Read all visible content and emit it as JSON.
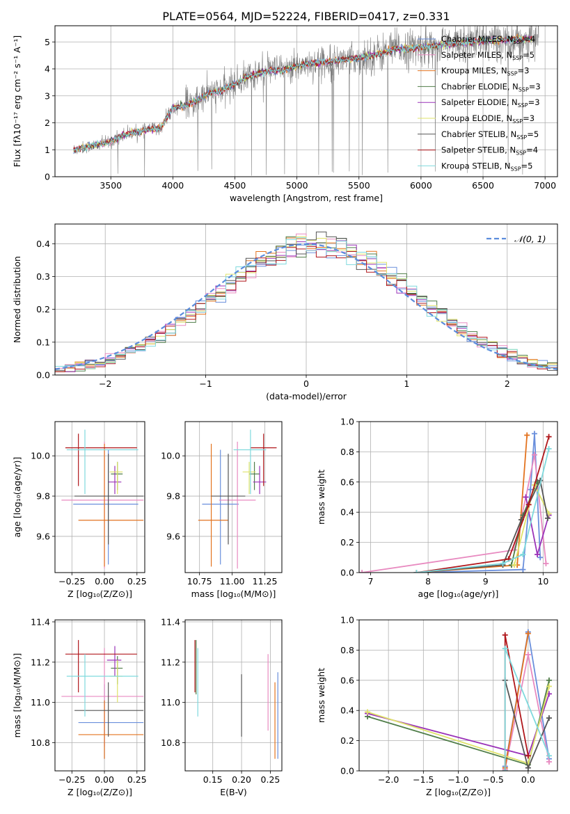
{
  "figure_title": "PLATE=0564, MJD=52224, FIBERID=0417, z=0.331",
  "colors": {
    "chabrier_miles": "#6a8fdc",
    "salpeter_miles": "#e88ac0",
    "kroupa_miles": "#e3731f",
    "chabrier_elodie": "#4f7d48",
    "salpeter_elodie": "#9a32b8",
    "kroupa_elodie": "#dfe36a",
    "chabrier_stelib": "#555555",
    "salpeter_stelib": "#b0171b",
    "kroupa_stelib": "#7fd9dd",
    "gaussian": "#5b8cdc",
    "data_spectrum": "#808080"
  },
  "legend_models": [
    {
      "label": "Chabrier MILES, N",
      "sub": "SSP",
      "suffix": "=4",
      "color": "#6a8fdc"
    },
    {
      "label": "Salpeter MILES, N",
      "sub": "SSP",
      "suffix": "=5",
      "color": "#e88ac0"
    },
    {
      "label": "Kroupa MILES, N",
      "sub": "SSP",
      "suffix": "=3",
      "color": "#e3731f"
    },
    {
      "label": "Chabrier ELODIE, N",
      "sub": "SSP",
      "suffix": "=3",
      "color": "#4f7d48"
    },
    {
      "label": "Salpeter ELODIE, N",
      "sub": "SSP",
      "suffix": "=3",
      "color": "#9a32b8"
    },
    {
      "label": "Kroupa ELODIE, N",
      "sub": "SSP",
      "suffix": "=3",
      "color": "#dfe36a"
    },
    {
      "label": "Chabrier STELIB, N",
      "sub": "SSP",
      "suffix": "=5",
      "color": "#555555"
    },
    {
      "label": "Salpeter STELIB, N",
      "sub": "SSP",
      "suffix": "=4",
      "color": "#b0171b"
    },
    {
      "label": "Kroupa STELIB, N",
      "sub": "SSP",
      "suffix": "=5",
      "color": "#7fd9dd"
    }
  ],
  "chart_data": [
    {
      "id": "spectrum",
      "type": "line",
      "xlabel": "wavelength [Angstrom, rest frame]",
      "ylabel": "Flux [fλ10⁻¹⁷ erg cm⁻² s⁻¹ A⁻¹]",
      "xlim": [
        3050,
        7100
      ],
      "ylim": [
        0,
        5.6
      ],
      "xticks": [
        3500,
        4000,
        4500,
        5000,
        5500,
        6000,
        6500,
        7000
      ],
      "yticks": [
        0,
        1,
        2,
        3,
        4,
        5
      ],
      "model_continuum": {
        "x": [
          3200,
          3300,
          3400,
          3500,
          3600,
          3700,
          3800,
          3900,
          4000,
          4100,
          4200,
          4300,
          4400,
          4500,
          4600,
          4700,
          4800,
          4900,
          5000,
          5100,
          5200,
          5300,
          5400,
          5500,
          5600,
          5700,
          5800,
          5900,
          6000,
          6100,
          6200,
          6300,
          6400,
          6500,
          6600,
          6700,
          6800,
          6900
        ],
        "y": [
          1.0,
          1.1,
          1.2,
          1.3,
          1.55,
          1.65,
          1.75,
          1.8,
          2.55,
          2.65,
          2.85,
          3.1,
          3.2,
          3.45,
          3.7,
          3.85,
          3.95,
          3.95,
          4.1,
          4.2,
          4.25,
          4.3,
          4.35,
          4.4,
          4.5,
          4.6,
          4.75,
          4.75,
          4.8,
          4.85,
          4.9,
          4.95,
          5.0,
          5.05,
          5.05,
          5.1,
          5.1,
          5.1
        ]
      },
      "legend_position": "upper right"
    },
    {
      "id": "residuals",
      "type": "step-histogram",
      "xlabel": "(data-model)/error",
      "ylabel": "Normed distribution",
      "xlim": [
        -2.5,
        2.5
      ],
      "ylim": [
        0,
        0.46
      ],
      "xticks": [
        -2,
        -1,
        0,
        1,
        2
      ],
      "yticks": [
        0.0,
        0.1,
        0.2,
        0.3,
        0.4
      ],
      "bin_width": 0.1,
      "reference_curve": "Gaussian mean 0, sigma 1",
      "legend": [
        {
          "label": "𝒩(0, 1)",
          "style": "dashed",
          "color": "#5b8cdc"
        }
      ],
      "legend_position": "upper right"
    },
    {
      "id": "age_vs_Z",
      "type": "errorbar",
      "xlabel": "Z [log₁₀(Z/Z⊙)]",
      "ylabel": "age  [log₁₀(age/yr)]",
      "xlim": [
        -0.38,
        0.31
      ],
      "ylim": [
        9.42,
        10.17
      ],
      "xticks": [
        -0.25,
        0.0,
        0.25
      ],
      "yticks": [
        9.6,
        9.8,
        10.0
      ],
      "points": [
        {
          "model": "Chabrier MILES",
          "x": 0.03,
          "xerr": [
            0.27,
            0.23
          ],
          "y": 9.76,
          "yerr": [
            0.3,
            0.27
          ],
          "color": "#6a8fdc"
        },
        {
          "model": "Salpeter MILES",
          "x": 0.0,
          "xerr": [
            0.33,
            0.3
          ],
          "y": 9.78,
          "yerr": [
            0.34,
            0.29
          ],
          "color": "#e88ac0"
        },
        {
          "model": "Kroupa MILES",
          "x": 0.0,
          "xerr": [
            0.2,
            0.3
          ],
          "y": 9.68,
          "yerr": [
            0.23,
            0.38
          ],
          "color": "#e3731f"
        },
        {
          "model": "Chabrier ELODIE",
          "x": 0.1,
          "xerr": [
            0.05,
            0.04
          ],
          "y": 9.91,
          "yerr": [
            0.08,
            0.06
          ],
          "color": "#4f7d48"
        },
        {
          "model": "Salpeter ELODIE",
          "x": 0.08,
          "xerr": [
            0.05,
            0.05
          ],
          "y": 9.87,
          "yerr": [
            0.06,
            0.08
          ],
          "color": "#9a32b8"
        },
        {
          "model": "Kroupa ELODIE",
          "x": 0.1,
          "xerr": [
            0.06,
            0.04
          ],
          "y": 9.92,
          "yerr": [
            0.11,
            0.05
          ],
          "color": "#dfe36a"
        },
        {
          "model": "Chabrier STELIB",
          "x": 0.03,
          "xerr": [
            0.26,
            0.27
          ],
          "y": 9.8,
          "yerr": [
            0.24,
            0.21
          ],
          "color": "#555555"
        },
        {
          "model": "Salpeter STELIB",
          "x": -0.2,
          "xerr": [
            0.1,
            0.45
          ],
          "y": 10.04,
          "yerr": [
            0.19,
            0.07
          ],
          "color": "#b0171b"
        },
        {
          "model": "Kroupa STELIB",
          "x": -0.15,
          "xerr": [
            0.14,
            0.41
          ],
          "y": 10.03,
          "yerr": [
            0.22,
            0.1
          ],
          "color": "#7fd9dd"
        }
      ]
    },
    {
      "id": "age_vs_mass",
      "type": "errorbar",
      "xlabel": "mass [log₁₀(M/M⊙)]",
      "ylabel": "",
      "xlim": [
        10.64,
        11.38
      ],
      "ylim": [
        9.42,
        10.17
      ],
      "xticks": [
        10.75,
        11.0,
        11.25
      ],
      "yticks": [
        9.6,
        9.8,
        10.0
      ],
      "points": [
        {
          "model": "Chabrier MILES",
          "x": 10.91,
          "xerr": [
            0.14,
            0.14
          ],
          "y": 9.76,
          "yerr": [
            0.3,
            0.27
          ],
          "color": "#6a8fdc"
        },
        {
          "model": "Salpeter MILES",
          "x": 11.04,
          "xerr": [
            0.14,
            0.14
          ],
          "y": 9.78,
          "yerr": [
            0.34,
            0.29
          ],
          "color": "#e88ac0"
        },
        {
          "model": "Kroupa MILES",
          "x": 10.84,
          "xerr": [
            0.1,
            0.13
          ],
          "y": 9.68,
          "yerr": [
            0.23,
            0.38
          ],
          "color": "#e3731f"
        },
        {
          "model": "Chabrier ELODIE",
          "x": 11.17,
          "xerr": [
            0.04,
            0.04
          ],
          "y": 9.91,
          "yerr": [
            0.08,
            0.06
          ],
          "color": "#4f7d48"
        },
        {
          "model": "Salpeter ELODIE",
          "x": 11.21,
          "xerr": [
            0.05,
            0.05
          ],
          "y": 9.87,
          "yerr": [
            0.06,
            0.08
          ],
          "color": "#9a32b8"
        },
        {
          "model": "Kroupa ELODIE",
          "x": 11.13,
          "xerr": [
            0.05,
            0.05
          ],
          "y": 9.92,
          "yerr": [
            0.11,
            0.05
          ],
          "color": "#dfe36a"
        },
        {
          "model": "Chabrier STELIB",
          "x": 10.97,
          "xerr": [
            0.13,
            0.13
          ],
          "y": 9.8,
          "yerr": [
            0.24,
            0.21
          ],
          "color": "#555555"
        },
        {
          "model": "Salpeter STELIB",
          "x": 11.24,
          "xerr": [
            0.1,
            0.1
          ],
          "y": 10.04,
          "yerr": [
            0.19,
            0.07
          ],
          "color": "#b0171b"
        },
        {
          "model": "Kroupa STELIB",
          "x": 11.14,
          "xerr": [
            0.13,
            0.12
          ],
          "y": 10.03,
          "yerr": [
            0.22,
            0.1
          ],
          "color": "#7fd9dd"
        }
      ]
    },
    {
      "id": "massweight_vs_age",
      "type": "line",
      "xlabel": "age  [log₁₀(age/yr)]",
      "ylabel": "mass weight",
      "xlim": [
        6.8,
        10.25
      ],
      "ylim": [
        0,
        1.0
      ],
      "xticks": [
        7,
        8,
        9,
        10
      ],
      "yticks": [
        0.0,
        0.2,
        0.4,
        0.6,
        0.8,
        1.0
      ],
      "series": [
        {
          "model": "Chabrier MILES",
          "color": "#6a8fdc",
          "x": [
            7.8,
            9.65,
            9.78,
            9.85,
            9.95
          ],
          "y": [
            0.0,
            0.02,
            0.55,
            0.92,
            0.1
          ]
        },
        {
          "model": "Salpeter MILES",
          "color": "#e88ac0",
          "x": [
            6.85,
            9.5,
            9.7,
            9.85,
            10.05
          ],
          "y": [
            0.0,
            0.15,
            0.5,
            0.78,
            0.06
          ]
        },
        {
          "model": "Kroupa MILES",
          "color": "#e3731f",
          "x": [
            7.8,
            9.55,
            9.72
          ],
          "y": [
            0.0,
            0.05,
            0.91
          ]
        },
        {
          "model": "Chabrier ELODIE",
          "color": "#4f7d48",
          "x": [
            9.45,
            9.65,
            9.9
          ],
          "y": [
            0.05,
            0.38,
            0.6
          ]
        },
        {
          "model": "Salpeter ELODIE",
          "color": "#9a32b8",
          "x": [
            9.7,
            9.9,
            10.1
          ],
          "y": [
            0.5,
            0.12,
            0.38
          ]
        },
        {
          "model": "Kroupa ELODIE",
          "color": "#dfe36a",
          "x": [
            9.5,
            9.85,
            10.1
          ],
          "y": [
            0.05,
            0.58,
            0.39
          ]
        },
        {
          "model": "Chabrier STELIB",
          "color": "#555555",
          "x": [
            7.8,
            9.3,
            9.62,
            9.95,
            10.08
          ],
          "y": [
            0.0,
            0.05,
            0.35,
            0.61,
            0.36
          ]
        },
        {
          "model": "Salpeter STELIB",
          "color": "#b0171b",
          "x": [
            7.8,
            9.4,
            9.75,
            10.1
          ],
          "y": [
            0.0,
            0.09,
            0.45,
            0.9
          ]
        },
        {
          "model": "Kroupa STELIB",
          "color": "#7fd9dd",
          "x": [
            7.8,
            9.3,
            9.65,
            10.1
          ],
          "y": [
            0.0,
            0.06,
            0.12,
            0.82
          ]
        }
      ]
    },
    {
      "id": "mass_vs_Z",
      "type": "errorbar",
      "xlabel": "Z [log₁₀(Z/Z⊙)]",
      "ylabel": "mass [log₁₀(M/M⊙)]",
      "xlim": [
        -0.38,
        0.31
      ],
      "ylim": [
        10.66,
        11.41
      ],
      "xticks": [
        -0.25,
        0.0,
        0.25
      ],
      "yticks": [
        10.8,
        11.0,
        11.2,
        11.4
      ],
      "points": [
        {
          "model": "Chabrier MILES",
          "x": 0.0,
          "xerr": [
            0.2,
            0.3
          ],
          "y": 10.9,
          "yerr": [
            0.18,
            0.19
          ],
          "color": "#6a8fdc"
        },
        {
          "model": "Salpeter MILES",
          "x": 0.0,
          "xerr": [
            0.33,
            0.3
          ],
          "y": 11.03,
          "yerr": [
            0.25,
            0.24
          ],
          "color": "#e88ac0"
        },
        {
          "model": "Kroupa MILES",
          "x": 0.0,
          "xerr": [
            0.2,
            0.3
          ],
          "y": 10.84,
          "yerr": [
            0.12,
            0.17
          ],
          "color": "#e3731f"
        },
        {
          "model": "Chabrier ELODIE",
          "x": 0.1,
          "xerr": [
            0.05,
            0.04
          ],
          "y": 11.17,
          "yerr": [
            0.08,
            0.06
          ],
          "color": "#4f7d48"
        },
        {
          "model": "Salpeter ELODIE",
          "x": 0.08,
          "xerr": [
            0.06,
            0.05
          ],
          "y": 11.21,
          "yerr": [
            0.08,
            0.07
          ],
          "color": "#9a32b8"
        },
        {
          "model": "Kroupa ELODIE",
          "x": 0.1,
          "xerr": [
            0.06,
            0.04
          ],
          "y": 11.13,
          "yerr": [
            0.13,
            0.08
          ],
          "color": "#dfe36a"
        },
        {
          "model": "Chabrier STELIB",
          "x": 0.03,
          "xerr": [
            0.26,
            0.27
          ],
          "y": 10.96,
          "yerr": [
            0.13,
            0.14
          ],
          "color": "#555555"
        },
        {
          "model": "Salpeter STELIB",
          "x": -0.2,
          "xerr": [
            0.1,
            0.45
          ],
          "y": 11.24,
          "yerr": [
            0.19,
            0.07
          ],
          "color": "#b0171b"
        },
        {
          "model": "Kroupa STELIB",
          "x": -0.15,
          "xerr": [
            0.14,
            0.41
          ],
          "y": 11.13,
          "yerr": [
            0.2,
            0.11
          ],
          "color": "#7fd9dd"
        }
      ]
    },
    {
      "id": "mass_vs_ebv",
      "type": "errorbar",
      "xlabel": "E(B-V)",
      "ylabel": "",
      "xlim": [
        0.102,
        0.27
      ],
      "ylim": [
        10.66,
        11.41
      ],
      "xticks": [
        0.15,
        0.2,
        0.25
      ],
      "yticks": [
        10.8,
        11.0,
        11.2,
        11.4
      ],
      "points": [
        {
          "model": "Chabrier STELIB",
          "x": 0.2,
          "y": 10.97,
          "yerr": [
            0.14,
            0.17
          ],
          "color": "#555555"
        },
        {
          "model": "Salpeter MILES",
          "x": 0.246,
          "y": 11.03,
          "yerr": [
            0.17,
            0.21
          ],
          "color": "#e88ac0"
        },
        {
          "model": "Kroupa MILES",
          "x": 0.258,
          "y": 10.9,
          "yerr": [
            0.18,
            0.2
          ],
          "color": "#e3731f"
        },
        {
          "model": "Chabrier MILES",
          "x": 0.263,
          "y": 10.93,
          "yerr": [
            0.21,
            0.22
          ],
          "color": "#6a8fdc"
        },
        {
          "model": "Chabrier ELODIE",
          "x": 0.121,
          "y": 11.17,
          "yerr": [
            0.13,
            0.14
          ],
          "color": "#4f7d48"
        },
        {
          "model": "Salpeter STELIB",
          "x": 0.119,
          "y": 11.24,
          "yerr": [
            0.19,
            0.07
          ],
          "color": "#b0171b"
        },
        {
          "model": "Kroupa STELIB",
          "x": 0.124,
          "y": 11.13,
          "yerr": [
            0.2,
            0.14
          ],
          "color": "#7fd9dd"
        }
      ]
    },
    {
      "id": "massweight_vs_Z",
      "type": "line",
      "xlabel": "Z [log₁₀(Z/Z⊙)]",
      "ylabel": "mass weight",
      "xlim": [
        -2.42,
        0.42
      ],
      "ylim": [
        0,
        1.0
      ],
      "xticks": [
        -2.0,
        -1.5,
        -1.0,
        -0.5,
        0.0
      ],
      "yticks": [
        0.0,
        0.2,
        0.4,
        0.6,
        0.8,
        1.0
      ],
      "series": [
        {
          "model": "Chabrier MILES",
          "color": "#6a8fdc",
          "x": [
            -0.33,
            0.0,
            0.3
          ],
          "y": [
            0.03,
            0.92,
            0.08
          ]
        },
        {
          "model": "Salpeter MILES",
          "color": "#e88ac0",
          "x": [
            -0.33,
            0.0,
            0.3
          ],
          "y": [
            0.01,
            0.77,
            0.06
          ]
        },
        {
          "model": "Kroupa MILES",
          "color": "#e3731f",
          "x": [
            -0.33,
            0.0
          ],
          "y": [
            0.02,
            0.91
          ]
        },
        {
          "model": "Chabrier ELODIE",
          "color": "#4f7d48",
          "x": [
            -2.3,
            0.0,
            0.3
          ],
          "y": [
            0.36,
            0.04,
            0.6
          ]
        },
        {
          "model": "Salpeter ELODIE",
          "color": "#9a32b8",
          "x": [
            -2.3,
            0.0,
            0.3
          ],
          "y": [
            0.38,
            0.1,
            0.51
          ]
        },
        {
          "model": "Kroupa ELODIE",
          "color": "#dfe36a",
          "x": [
            -2.3,
            0.0,
            0.3
          ],
          "y": [
            0.39,
            0.05,
            0.56
          ]
        },
        {
          "model": "Chabrier STELIB",
          "color": "#555555",
          "x": [
            -0.33,
            0.0,
            0.3
          ],
          "y": [
            0.6,
            0.02,
            0.35
          ]
        },
        {
          "model": "Salpeter STELIB",
          "color": "#b0171b",
          "x": [
            -0.33,
            -0.33,
            0.0
          ],
          "y": [
            0.0,
            0.9,
            0.1
          ]
        },
        {
          "model": "Kroupa STELIB",
          "color": "#7fd9dd",
          "x": [
            -0.33,
            -0.33,
            0.3
          ],
          "y": [
            0.0,
            0.81,
            0.1
          ]
        }
      ]
    }
  ]
}
